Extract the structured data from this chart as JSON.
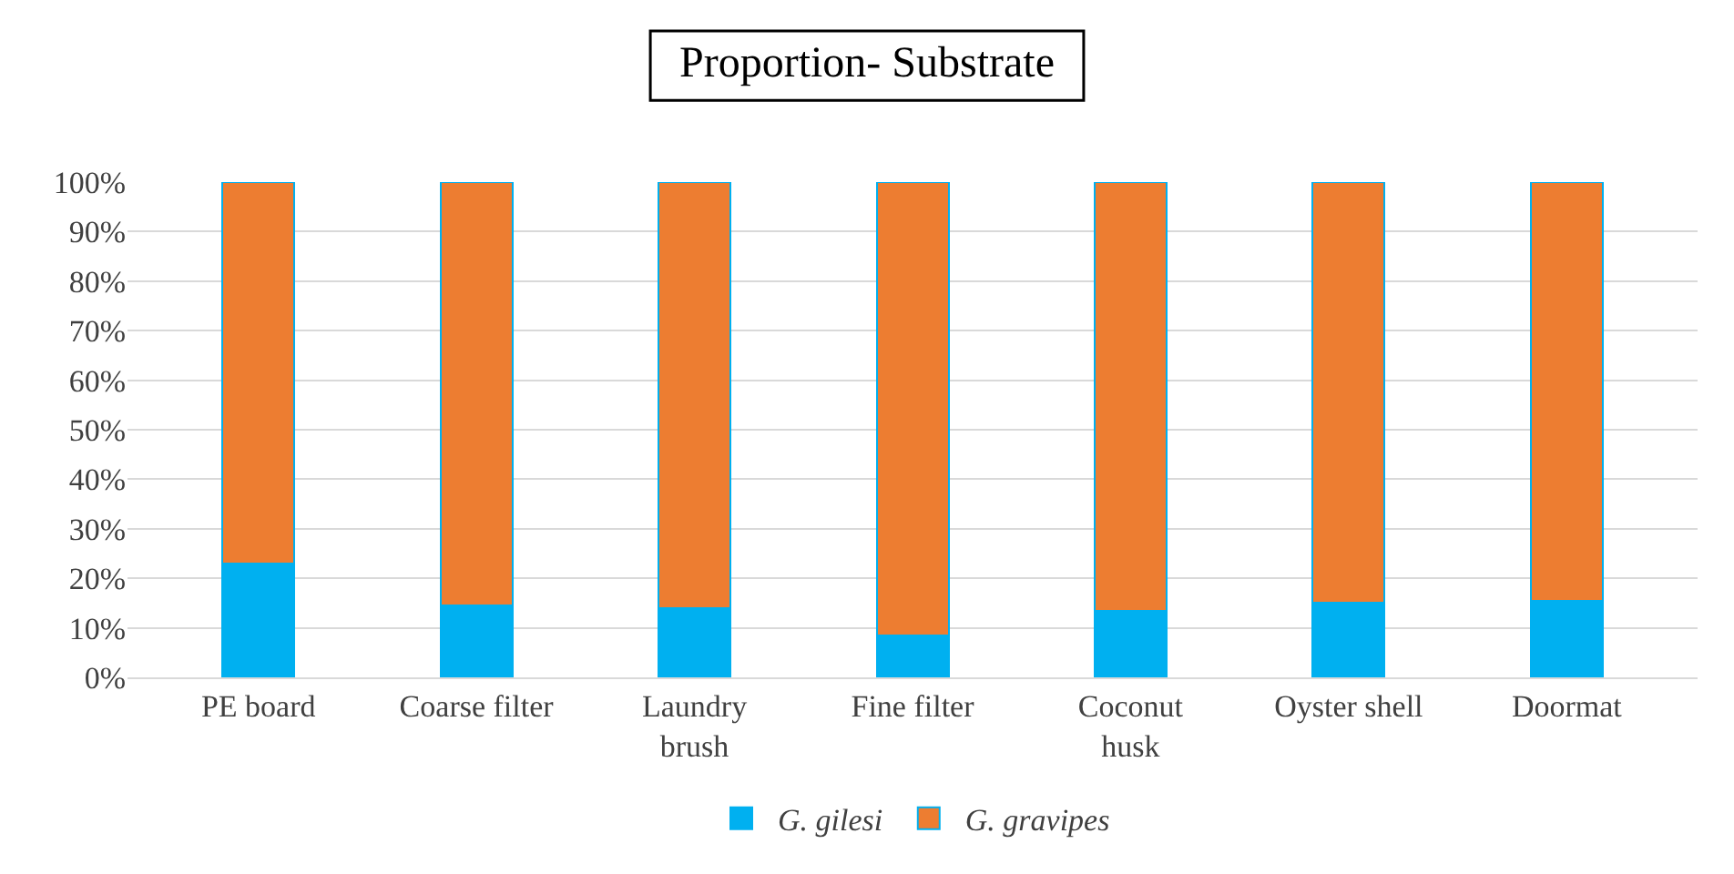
{
  "chart_data": {
    "type": "bar",
    "title": "Proportion- Substrate",
    "stacked": true,
    "categories": [
      "PE board",
      "Coarse filter",
      "Laundry\nbrush",
      "Fine filter",
      "Coconut\nhusk",
      "Oyster shell",
      "Doormat"
    ],
    "series": [
      {
        "name": "G. gilesi",
        "color": "#00b0f0",
        "values": [
          23,
          14.5,
          14,
          8.5,
          13.5,
          15,
          15.5
        ]
      },
      {
        "name": "G. gravipes",
        "color": "#ed7d31",
        "values": [
          77,
          85.5,
          86,
          91.5,
          86.5,
          85,
          84.5
        ]
      }
    ],
    "ylim": [
      0,
      100
    ],
    "yticks": [
      {
        "value": 0,
        "label": "0%"
      },
      {
        "value": 10,
        "label": "10%"
      },
      {
        "value": 20,
        "label": "20%"
      },
      {
        "value": 30,
        "label": "30%"
      },
      {
        "value": 40,
        "label": "40%"
      },
      {
        "value": 50,
        "label": "50%"
      },
      {
        "value": 60,
        "label": "60%"
      },
      {
        "value": 70,
        "label": "70%"
      },
      {
        "value": 80,
        "label": "80%"
      },
      {
        "value": 90,
        "label": "90%"
      },
      {
        "value": 100,
        "label": "100%"
      }
    ],
    "grid": "y",
    "legend": "bottom"
  }
}
